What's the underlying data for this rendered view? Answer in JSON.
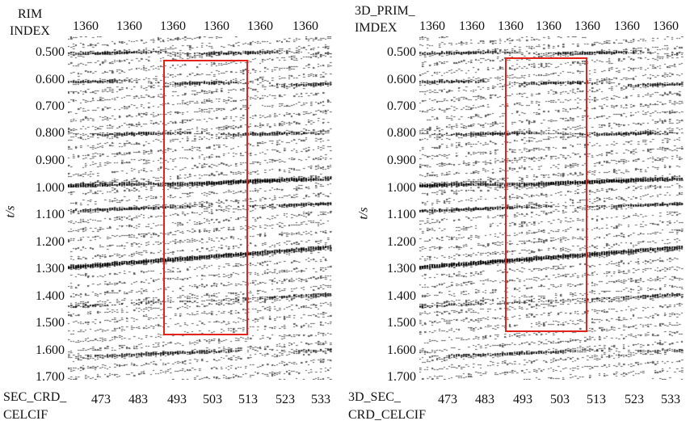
{
  "left": {
    "header_line1": "RIM",
    "header_line2": "INDEX",
    "top_ticks": [
      "1360",
      "1360",
      "1360",
      "1360",
      "1360",
      "1360"
    ],
    "bottom_label_line1": "SEC_CRD_",
    "bottom_label_line2": "CELCIF",
    "bottom_ticks": [
      "473",
      "483",
      "493",
      "503",
      "513",
      "523",
      "533"
    ],
    "y_axis_label": "t/s",
    "y_ticks": [
      "0.500",
      "0.600",
      "0.700",
      "0.800",
      "0.900",
      "1.000",
      "1.100",
      "1.200",
      "1.300",
      "1.400",
      "1.500",
      "1.600",
      "1.700"
    ],
    "highlight_box_color": "#e2231a"
  },
  "right": {
    "header_line1": "3D_PRIM_",
    "header_line2": "IMDEX",
    "top_ticks": [
      "1360",
      "1360",
      "1360",
      "1360",
      "1360",
      "1360",
      "1360"
    ],
    "bottom_label_line1": "3D_SEC_",
    "bottom_label_line2": "CRD_CELCIF",
    "bottom_ticks": [
      "473",
      "483",
      "493",
      "503",
      "513",
      "523",
      "533"
    ],
    "y_axis_label": "t/s",
    "y_ticks": [
      "0.500",
      "0.600",
      "0.700",
      "0.800",
      "0.900",
      "1.000",
      "1.100",
      "1.200",
      "1.300",
      "1.400",
      "1.500",
      "1.600",
      "1.700"
    ],
    "highlight_box_color": "#e2231a"
  }
}
